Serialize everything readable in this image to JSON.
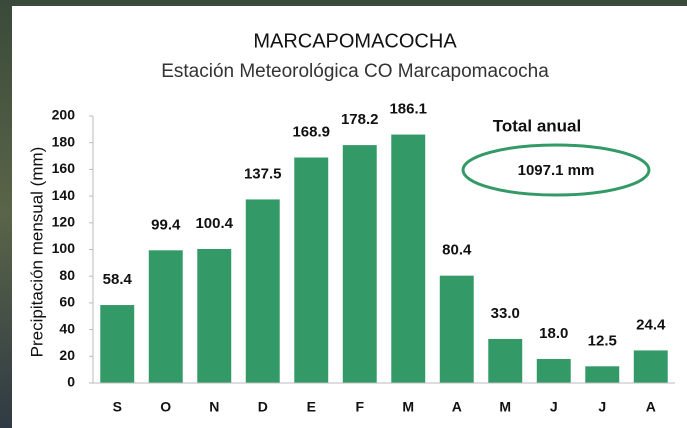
{
  "chart_data": {
    "type": "bar",
    "title": "MARCAPOMACOCHA",
    "subtitle": "Estación Meteorológica CO Marcapomacocha",
    "ylabel": "Precipitación mensual (mm)",
    "categories": [
      "S",
      "O",
      "N",
      "D",
      "E",
      "F",
      "M",
      "A",
      "M",
      "J",
      "J",
      "A"
    ],
    "values": [
      58.4,
      99.4,
      100.4,
      137.5,
      168.9,
      178.2,
      186.1,
      80.4,
      33.0,
      18.0,
      12.5,
      24.4
    ],
    "value_labels": [
      "58.4",
      "99.4",
      "100.4",
      "137.5",
      "168.9",
      "178.2",
      "186.1",
      "80.4",
      "33.0",
      "18.0",
      "12.5",
      "24.4"
    ],
    "color": "#339966",
    "ylim": [
      0,
      200
    ],
    "yticks": [
      0,
      20,
      40,
      60,
      80,
      100,
      120,
      140,
      160,
      180,
      200
    ],
    "grid": false,
    "annotations": [
      "Total anual",
      "1097.1 mm"
    ]
  }
}
